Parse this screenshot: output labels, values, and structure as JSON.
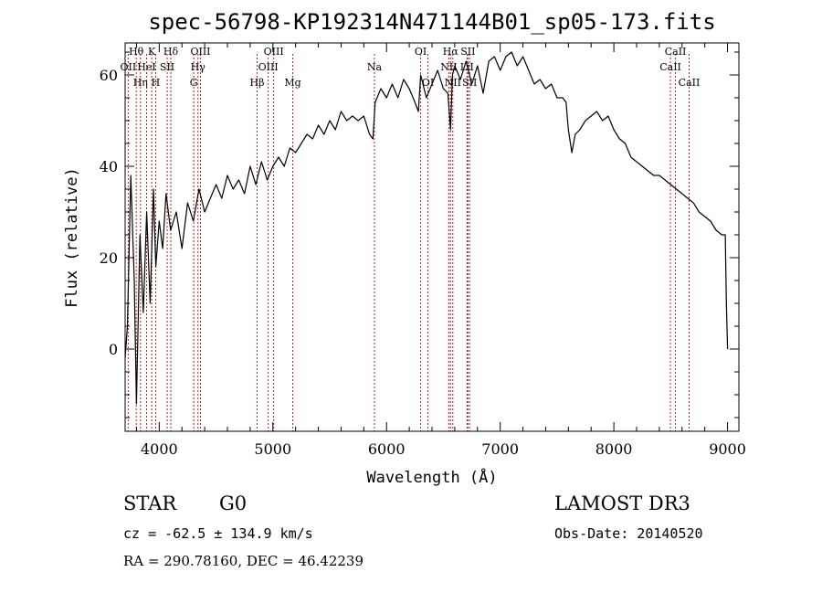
{
  "chart_data": {
    "type": "line",
    "title": "spec-56798-KP192314N471144B01_sp05-173.fits",
    "xlabel": "Wavelength (Å)",
    "ylabel": "Flux (relative)",
    "xlim": [
      3700,
      9100
    ],
    "ylim": [
      -18,
      67
    ],
    "x_ticks": [
      4000,
      5000,
      6000,
      7000,
      8000,
      9000
    ],
    "y_ticks": [
      0,
      20,
      40,
      60
    ],
    "x_tick_labels": [
      "4000",
      "5000",
      "6000",
      "7000",
      "8000",
      "9000"
    ],
    "y_tick_labels": [
      "0",
      "20",
      "40",
      "60"
    ],
    "grid": false,
    "series": [
      {
        "color": "#000000",
        "x": [
          3700,
          3720,
          3750,
          3780,
          3800,
          3830,
          3860,
          3890,
          3920,
          3950,
          3970,
          4000,
          4030,
          4060,
          4100,
          4150,
          4200,
          4250,
          4300,
          4350,
          4400,
          4450,
          4500,
          4550,
          4600,
          4650,
          4700,
          4750,
          4800,
          4850,
          4900,
          4950,
          5000,
          5050,
          5100,
          5150,
          5200,
          5250,
          5300,
          5350,
          5400,
          5450,
          5500,
          5550,
          5600,
          5650,
          5700,
          5750,
          5800,
          5850,
          5880,
          5900,
          5950,
          6000,
          6050,
          6100,
          6150,
          6200,
          6250,
          6280,
          6300,
          6350,
          6400,
          6450,
          6500,
          6540,
          6563,
          6580,
          6600,
          6650,
          6700,
          6750,
          6800,
          6850,
          6900,
          6950,
          7000,
          7050,
          7100,
          7150,
          7200,
          7250,
          7300,
          7350,
          7400,
          7450,
          7500,
          7550,
          7580,
          7600,
          7630,
          7660,
          7700,
          7750,
          7800,
          7850,
          7900,
          7950,
          8000,
          8050,
          8100,
          8150,
          8200,
          8250,
          8300,
          8350,
          8400,
          8450,
          8500,
          8550,
          8600,
          8650,
          8700,
          8750,
          8800,
          8850,
          8900,
          8950,
          8980,
          8990,
          9000
        ],
        "y": [
          -2,
          5,
          38,
          15,
          -12,
          25,
          8,
          30,
          10,
          35,
          18,
          28,
          22,
          34,
          26,
          30,
          22,
          32,
          28,
          35,
          30,
          33,
          36,
          33,
          38,
          35,
          37,
          34,
          40,
          36,
          41,
          37,
          40,
          42,
          40,
          44,
          43,
          45,
          47,
          46,
          49,
          47,
          50,
          48,
          52,
          50,
          51,
          50,
          51,
          47,
          46,
          54,
          57,
          55,
          58,
          55,
          59,
          57,
          54,
          52,
          60,
          55,
          58,
          61,
          57,
          56,
          48,
          60,
          62,
          59,
          63,
          58,
          62,
          56,
          63,
          64,
          61,
          64,
          65,
          62,
          64,
          61,
          58,
          59,
          57,
          58,
          55,
          55,
          54,
          48,
          43,
          47,
          48,
          50,
          51,
          52,
          50,
          51,
          48,
          46,
          45,
          42,
          41,
          40,
          39,
          38,
          38,
          37,
          36,
          35,
          34,
          33,
          32,
          30,
          29,
          28,
          26,
          25,
          25,
          10,
          0
        ]
      }
    ],
    "lines": [
      {
        "label": "OII",
        "wave": 3727,
        "row": 2
      },
      {
        "label": "Hθ",
        "wave": 3798,
        "row": 1
      },
      {
        "label": "Hη",
        "wave": 3835,
        "row": 3
      },
      {
        "label": "HeI",
        "wave": 3889,
        "row": 2
      },
      {
        "label": "K",
        "wave": 3934,
        "row": 1
      },
      {
        "label": "H",
        "wave": 3969,
        "row": 3
      },
      {
        "label": "SII",
        "wave": 4070,
        "row": 2
      },
      {
        "label": "Hδ",
        "wave": 4102,
        "row": 1
      },
      {
        "label": "G",
        "wave": 4304,
        "row": 3
      },
      {
        "label": "Hγ",
        "wave": 4341,
        "row": 2
      },
      {
        "label": "OIII",
        "wave": 4363,
        "row": 1
      },
      {
        "label": "Hβ",
        "wave": 4861,
        "row": 3
      },
      {
        "label": "OIII",
        "wave": 4959,
        "row": 2
      },
      {
        "label": "OIII",
        "wave": 5007,
        "row": 1
      },
      {
        "label": "Mg",
        "wave": 5175,
        "row": 3
      },
      {
        "label": "Na",
        "wave": 5893,
        "row": 2
      },
      {
        "label": "OI",
        "wave": 6300,
        "row": 1
      },
      {
        "label": "OI",
        "wave": 6364,
        "row": 3
      },
      {
        "label": "NII",
        "wave": 6548,
        "row": 2
      },
      {
        "label": "Hα",
        "wave": 6563,
        "row": 1
      },
      {
        "label": "NII",
        "wave": 6583,
        "row": 3
      },
      {
        "label": "SII",
        "wave": 6716,
        "row": 1
      },
      {
        "label": "LiI",
        "wave": 6708,
        "row": 2
      },
      {
        "label": "SII",
        "wave": 6731,
        "row": 3
      },
      {
        "label": "CaII",
        "wave": 8498,
        "row": 2
      },
      {
        "label": "CaII",
        "wave": 8542,
        "row": 1
      },
      {
        "label": "CaII",
        "wave": 8662,
        "row": 3
      }
    ]
  },
  "info": {
    "object_class": "STAR",
    "subclass": "G0",
    "survey": "LAMOST DR3",
    "cz": "cz = -62.5 ± 134.9 km/s",
    "obs_date": "Obs-Date: 20140520",
    "coords": "RA = 290.78160, DEC =  46.42239"
  }
}
